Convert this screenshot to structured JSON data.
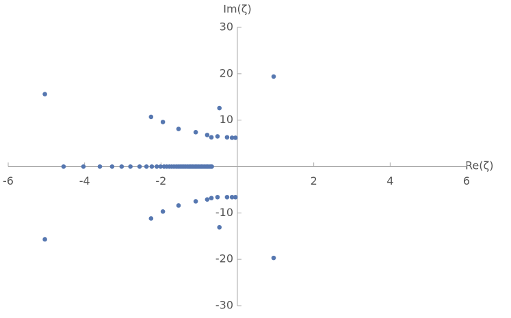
{
  "chart_data": {
    "type": "scatter",
    "x_label": "Re(ζ)",
    "y_label": "Im(ζ)",
    "color": "#5677b0",
    "x": [
      -5.04,
      -5.04,
      0.95,
      0.95,
      -2.26,
      -2.26,
      -1.95,
      -1.95,
      -1.54,
      -1.54,
      -1.09,
      -1.09,
      -0.79,
      -0.79,
      -0.68,
      -0.68,
      -0.52,
      -0.52,
      -0.47,
      -0.47,
      -0.27,
      -0.27,
      -0.14,
      -0.14,
      -0.05,
      -0.05,
      -4.55,
      -4.03,
      -3.6,
      -3.28,
      -3.03,
      -2.8,
      -2.56,
      -2.38,
      -2.24,
      -2.11,
      -2.01,
      -1.92,
      -1.85,
      -1.78,
      -1.72,
      -1.66,
      -1.6,
      -1.55,
      -1.5,
      -1.45,
      -1.4,
      -1.35,
      -1.3,
      -1.26,
      -1.22,
      -1.18,
      -1.14,
      -1.1,
      -1.06,
      -1.02,
      -0.98,
      -0.94,
      -0.9,
      -0.86,
      -0.82,
      -0.78,
      -0.74,
      -0.7,
      -0.67
    ],
    "values": [
      15.6,
      -15.7,
      19.4,
      -19.7,
      10.7,
      -11.2,
      9.6,
      -9.7,
      8.1,
      -8.4,
      7.4,
      -7.5,
      6.8,
      -7.1,
      6.3,
      -6.8,
      6.5,
      -6.6,
      12.6,
      -13.1,
      6.3,
      -6.6,
      6.2,
      -6.6,
      6.2,
      -6.6,
      0,
      0,
      0,
      0,
      0,
      0,
      0,
      0,
      0,
      0,
      0,
      0,
      0,
      0,
      0,
      0,
      0,
      0,
      0,
      0,
      0,
      0,
      0,
      0,
      0,
      0,
      0,
      0,
      0,
      0,
      0,
      0,
      0,
      0,
      0,
      0,
      0,
      0,
      0
    ],
    "xlim": [
      -6,
      6
    ],
    "ylim": [
      -30,
      30
    ],
    "xticks": [
      -6,
      -4,
      -2,
      2,
      4,
      6
    ],
    "yticks": [
      -30,
      -20,
      -10,
      10,
      20,
      30
    ]
  }
}
